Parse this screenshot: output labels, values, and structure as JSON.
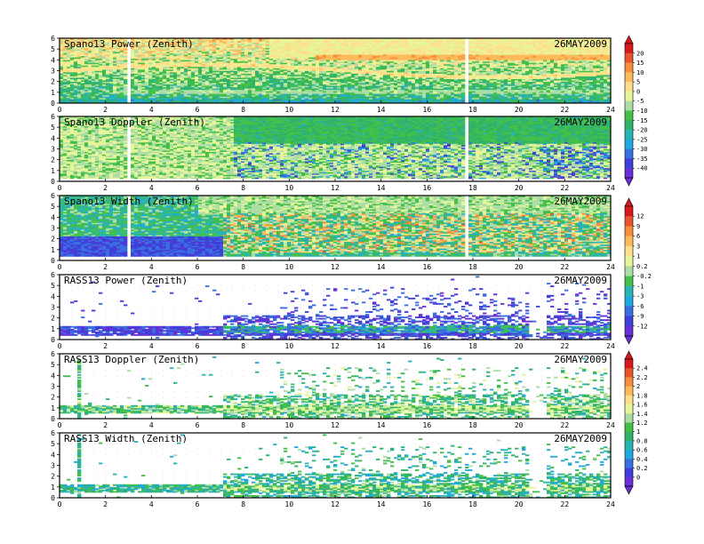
{
  "chart_data": [
    {
      "type": "heatmap",
      "title": "Spano13 Power (Zenith)",
      "date": "26MAY2009",
      "x_ticks": [
        "0",
        "2",
        "4",
        "6",
        "8",
        "10",
        "12",
        "14",
        "16",
        "18",
        "20",
        "22",
        "24"
      ],
      "y_ticks": [
        "0",
        "1",
        "2",
        "3",
        "4",
        "5",
        "6"
      ],
      "xlim": [
        0,
        24
      ],
      "ylim": [
        0,
        6
      ],
      "colorbar_group": "power",
      "pattern": "power",
      "gaps_x": [
        3.0,
        17.6
      ]
    },
    {
      "type": "heatmap",
      "title": "Spano13 Doppler (Zenith)",
      "date": "26MAY2009",
      "x_ticks": [
        "0",
        "2",
        "4",
        "6",
        "8",
        "10",
        "12",
        "14",
        "16",
        "18",
        "20",
        "22",
        "24"
      ],
      "y_ticks": [
        "0",
        "1",
        "2",
        "3",
        "4",
        "5",
        "6"
      ],
      "xlim": [
        0,
        24
      ],
      "ylim": [
        0,
        6
      ],
      "colorbar_group": "power",
      "pattern": "doppler",
      "gaps_x": [
        3.0,
        17.6
      ]
    },
    {
      "type": "heatmap",
      "title": "Spano13 Width (Zenith)",
      "date": "26MAY2009",
      "x_ticks": [
        "0",
        "2",
        "4",
        "6",
        "8",
        "10",
        "12",
        "14",
        "16",
        "18",
        "20",
        "22",
        "24"
      ],
      "y_ticks": [
        "0",
        "1",
        "2",
        "3",
        "4",
        "5",
        "6"
      ],
      "xlim": [
        0,
        24
      ],
      "ylim": [
        0,
        6
      ],
      "colorbar_group": "width",
      "pattern": "width",
      "gaps_x": [
        3.0,
        17.6
      ]
    },
    {
      "type": "heatmap",
      "title": "RASS13 Power (Zenith)",
      "date": "26MAY2009",
      "x_ticks": [
        "0",
        "2",
        "4",
        "6",
        "8",
        "10",
        "12",
        "14",
        "16",
        "18",
        "20",
        "22",
        "24"
      ],
      "y_ticks": [
        "0",
        "1",
        "2",
        "3",
        "4",
        "5",
        "6"
      ],
      "xlim": [
        0,
        24
      ],
      "ylim": [
        0,
        6
      ],
      "colorbar_group": "width",
      "pattern": "rass_power",
      "gaps_x": []
    },
    {
      "type": "heatmap",
      "title": "RASS13 Doppler (Zenith)",
      "date": "26MAY2009",
      "x_ticks": [
        "0",
        "2",
        "4",
        "6",
        "8",
        "10",
        "12",
        "14",
        "16",
        "18",
        "20",
        "22",
        "24"
      ],
      "y_ticks": [
        "0",
        "1",
        "2",
        "3",
        "4",
        "5",
        "6"
      ],
      "xlim": [
        0,
        24
      ],
      "ylim": [
        0,
        6
      ],
      "colorbar_group": "rass",
      "pattern": "rass_doppler",
      "gaps_x": []
    },
    {
      "type": "heatmap",
      "title": "RASS13 Width (Zenith)",
      "date": "26MAY2009",
      "x_ticks": [
        "0",
        "2",
        "4",
        "6",
        "8",
        "10",
        "12",
        "14",
        "16",
        "18",
        "20",
        "22",
        "24"
      ],
      "y_ticks": [
        "0",
        "1",
        "2",
        "3",
        "4",
        "5",
        "6"
      ],
      "xlim": [
        0,
        24
      ],
      "ylim": [
        0,
        6
      ],
      "colorbar_group": "rass",
      "pattern": "rass_width",
      "gaps_x": []
    }
  ],
  "colorbars": [
    {
      "name": "power",
      "labels": [
        "20",
        "15",
        "10",
        "5",
        "0",
        "-5",
        "-10",
        "-15",
        "-20",
        "-25",
        "-30",
        "-35",
        "-40"
      ],
      "colors": [
        "#d7191c",
        "#e8552c",
        "#f58d3b",
        "#fdba5b",
        "#fee08b",
        "#e6f598",
        "#abdda4",
        "#43c04a",
        "#2fb36b",
        "#2ab3b3",
        "#1ea7e0",
        "#3b6fe0",
        "#3f3fd9",
        "#6b2fd6"
      ]
    },
    {
      "name": "width",
      "labels": [
        "12",
        "9",
        "6",
        "3",
        "1",
        "0.2",
        "-0.2",
        "-1",
        "-3",
        "-6",
        "-9",
        "-12"
      ],
      "colors": [
        "#d7191c",
        "#e8552c",
        "#f58d3b",
        "#fdba5b",
        "#fee08b",
        "#e6f598",
        "#abdda4",
        "#43c04a",
        "#2ab3b3",
        "#1ea7e0",
        "#3b6fe0",
        "#3f3fd9",
        "#6b2fd6"
      ]
    },
    {
      "name": "rass",
      "labels": [
        "2.4",
        "2.2",
        "2",
        "1.8",
        "1.6",
        "1.4",
        "1.2",
        "1",
        "0.8",
        "0.6",
        "0.4",
        "0.2",
        "0"
      ],
      "colors": [
        "#d7191c",
        "#e8552c",
        "#f58d3b",
        "#fdba5b",
        "#fee08b",
        "#e6f598",
        "#abdda4",
        "#43c04a",
        "#2fb36b",
        "#2ab3b3",
        "#1ea7e0",
        "#3b6fe0",
        "#3f3fd9",
        "#6b2fd6"
      ]
    }
  ]
}
